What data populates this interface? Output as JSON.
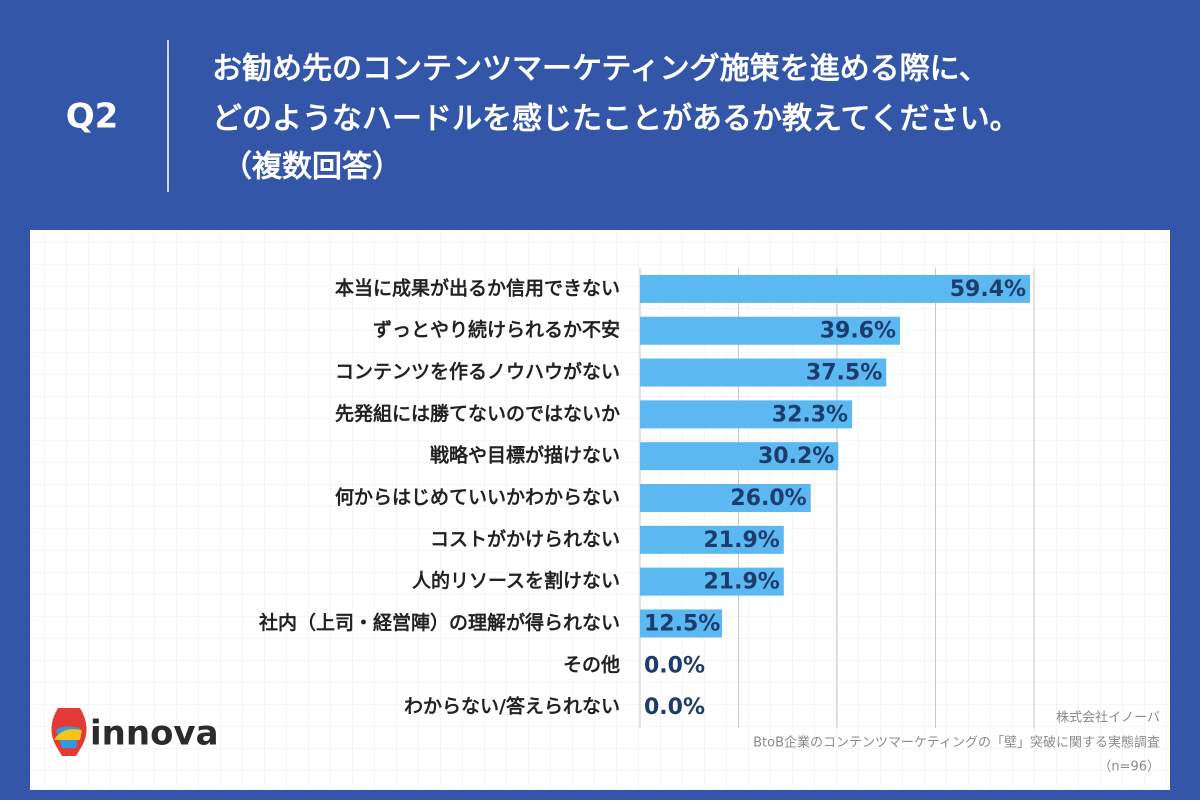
{
  "header": {
    "label": "Q2",
    "title_lines": [
      "お勧め先のコンテンツマーケティング施策を進める際に、",
      "どのようなハードルを感じたことがあるか教えてください。",
      "（複数回答）"
    ]
  },
  "chart_data": {
    "type": "hbar",
    "categories": [
      "本当に成果が出るか信用できない",
      "ずっとやり続けられるか不安",
      "コンテンツを作るノウハウがない",
      "先発組には勝てないのではないか",
      "戦略や目標が描けない",
      "何からはじめていいかわからない",
      "コストがかけられない",
      "人的リソースを割けない",
      "社内（上司・経営陣）の理解が得られない",
      "その他",
      "わからない/答えられない"
    ],
    "values": [
      59.4,
      39.6,
      37.5,
      32.3,
      30.2,
      26.0,
      21.9,
      21.9,
      12.5,
      0.0,
      0.0
    ],
    "value_labels": [
      "59.4%",
      "39.6%",
      "37.5%",
      "32.3%",
      "30.2%",
      "26.0%",
      "21.9%",
      "21.9%",
      "12.5%",
      "0.0%",
      "0.0%"
    ],
    "color": "#5bb8f0",
    "xlim": [
      0,
      60
    ],
    "xticks": [
      0,
      15,
      30,
      45,
      60
    ],
    "grid": true
  },
  "notes": [
    "株式会社イノーバ",
    "BtoB企業のコンテンツマーケティングの「壁」突破に関する実態調査",
    "（n=96）"
  ],
  "logo": "innova"
}
